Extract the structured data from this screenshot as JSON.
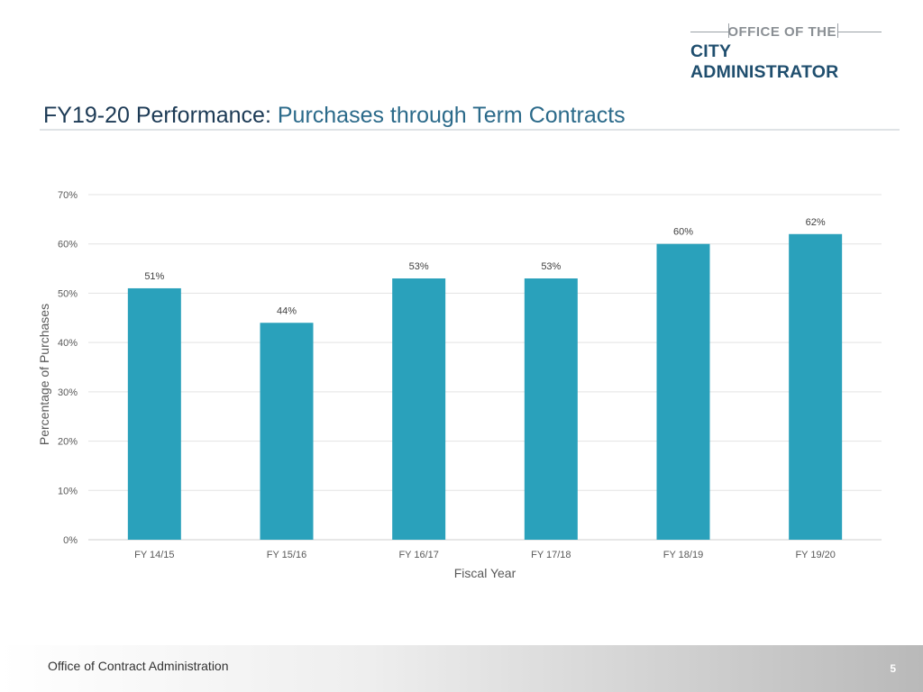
{
  "header": {
    "logo_top": "OFFICE OF THE",
    "logo_bottom": "CITY ADMINISTRATOR",
    "title_bold": "FY19-20 Performance:",
    "title_rest": "Purchases through Term Contracts"
  },
  "chart_data": {
    "type": "bar",
    "categories": [
      "FY 14/15",
      "FY 15/16",
      "FY 16/17",
      "FY 17/18",
      "FY 18/19",
      "FY 19/20"
    ],
    "values": [
      51,
      44,
      53,
      53,
      60,
      62
    ],
    "data_labels": [
      "51%",
      "44%",
      "53%",
      "53%",
      "60%",
      "62%"
    ],
    "xlabel": "Fiscal Year",
    "ylabel": "Percentage of Purchases",
    "ylim": [
      0,
      70
    ],
    "yticks": [
      0,
      10,
      20,
      30,
      40,
      50,
      60,
      70
    ],
    "ytick_labels": [
      "0%",
      "10%",
      "20%",
      "30%",
      "40%",
      "50%",
      "60%",
      "70%"
    ],
    "grid": true,
    "bar_color": "#2aa1bb"
  },
  "footer": {
    "text": "Office of Contract Administration",
    "page_number": "5"
  }
}
